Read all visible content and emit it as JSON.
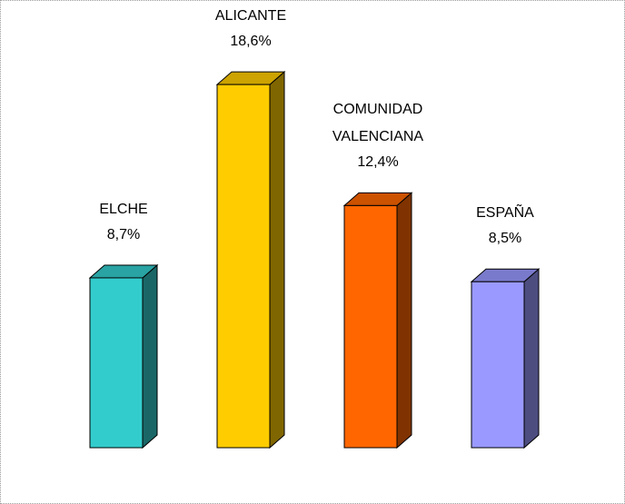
{
  "chart_data": {
    "type": "bar3d",
    "categories": [
      "ELCHE",
      "ALICANTE",
      "COMUNIDAD VALENCIANA",
      "ESPAÑA"
    ],
    "values": [
      8.7,
      18.6,
      12.4,
      8.5
    ],
    "value_labels": [
      "8,7%",
      "18,6%",
      "12,4%",
      "8,5%"
    ],
    "colors": [
      "#33CCCC",
      "#FFCC00",
      "#FF6600",
      "#9999FF"
    ]
  }
}
